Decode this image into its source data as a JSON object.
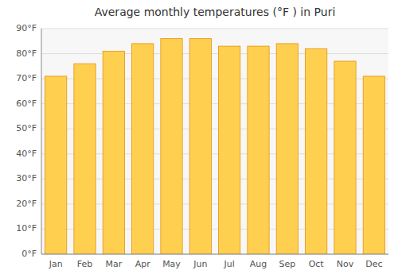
{
  "chart_data": {
    "type": "bar",
    "title": "Average monthly temperatures (°F ) in Puri",
    "categories": [
      "Jan",
      "Feb",
      "Mar",
      "Apr",
      "May",
      "Jun",
      "Jul",
      "Aug",
      "Sep",
      "Oct",
      "Nov",
      "Dec"
    ],
    "values": [
      71,
      76,
      81,
      84,
      86,
      86,
      83,
      83,
      84,
      82,
      77,
      71
    ],
    "color": "#FFD050",
    "ylim": [
      0,
      90
    ],
    "yticks": [
      {
        "value": 0,
        "label": "0°F"
      },
      {
        "value": 10,
        "label": "10°F"
      },
      {
        "value": 20,
        "label": "20°F"
      },
      {
        "value": 30,
        "label": "30°F"
      },
      {
        "value": 40,
        "label": "40°F"
      },
      {
        "value": 50,
        "label": "50°F"
      },
      {
        "value": 60,
        "label": "60°F"
      },
      {
        "value": 70,
        "label": "70°F"
      },
      {
        "value": 80,
        "label": "80°F"
      },
      {
        "value": 90,
        "label": "90°F"
      }
    ],
    "grid": true
  }
}
